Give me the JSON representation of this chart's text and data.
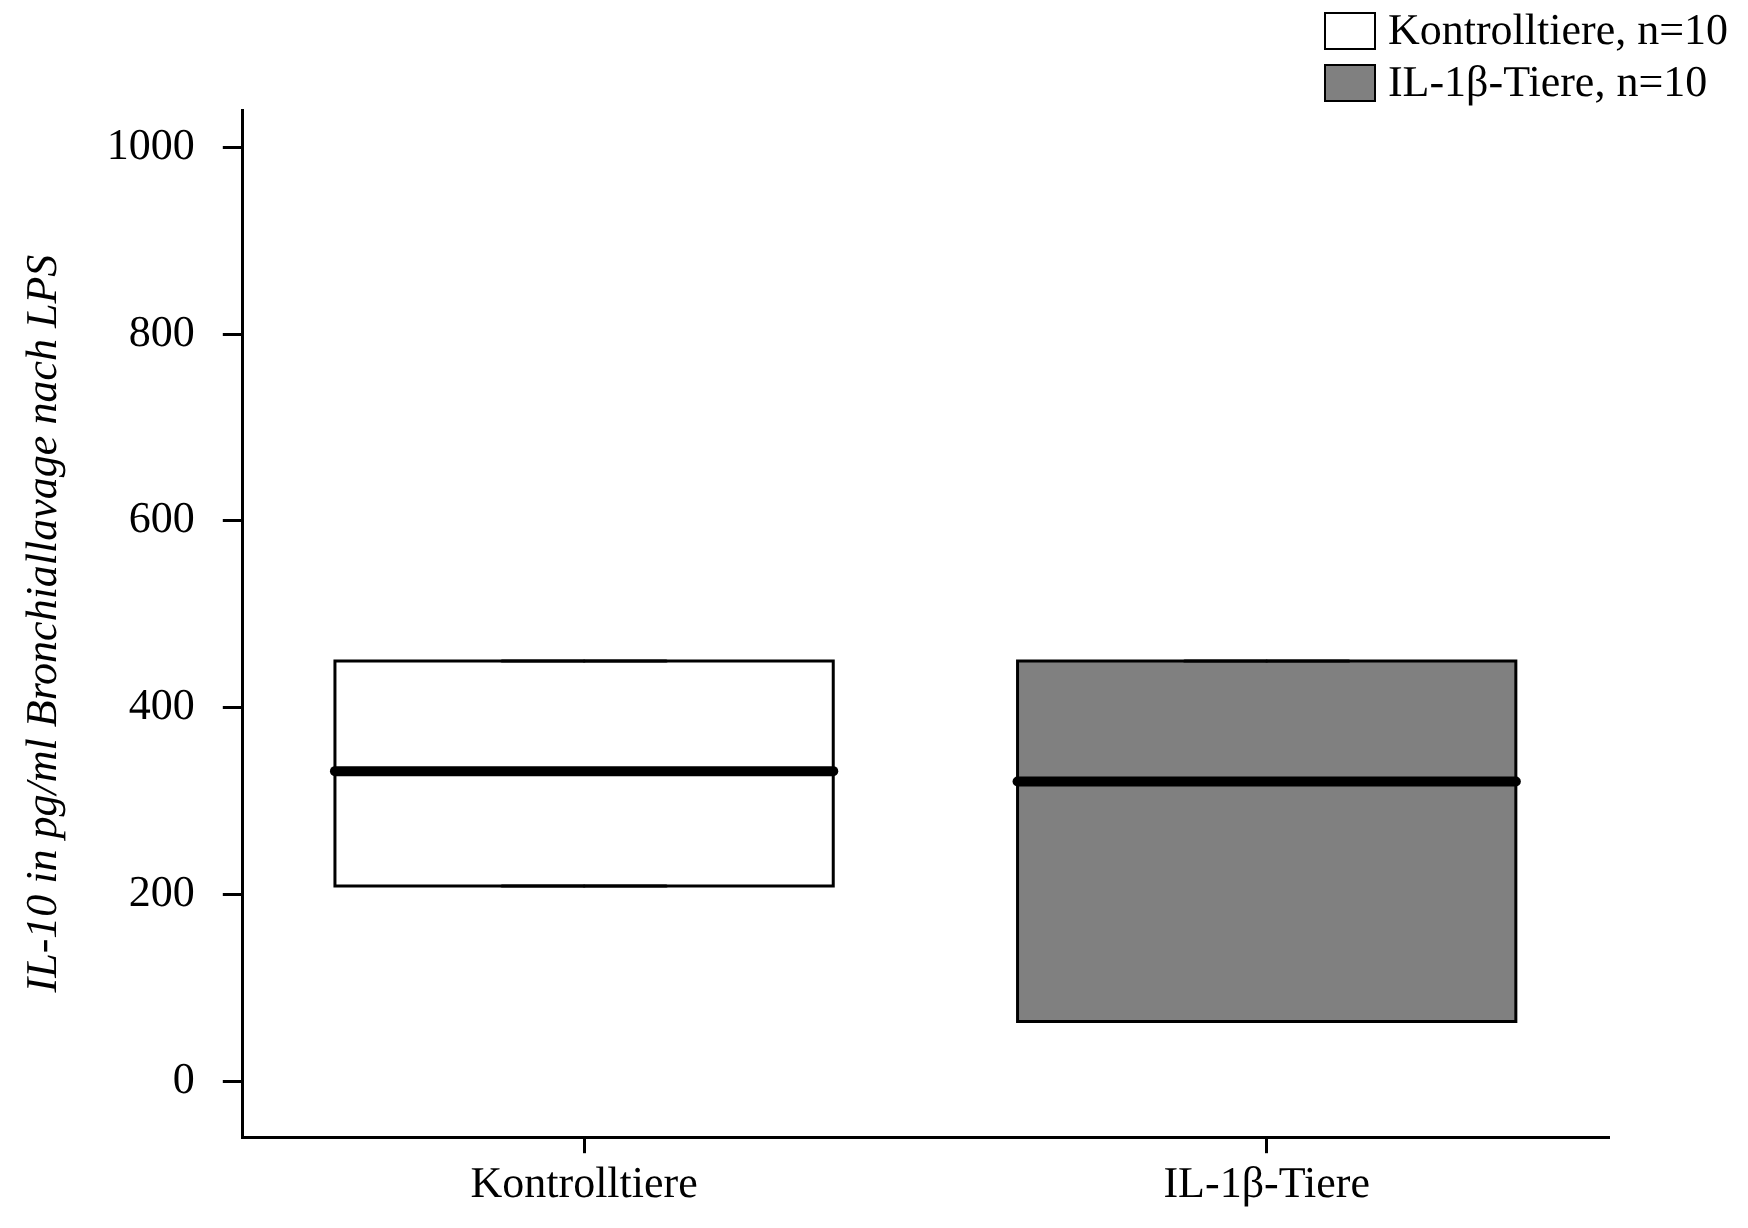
{
  "chart_data": {
    "type": "box",
    "ylabel": "IL-10 in pg/ml Bronchiallavage nach LPS",
    "categories": [
      "Kontrolltiere",
      "IL-1β-Tiere"
    ],
    "series": [
      {
        "name": "Kontrolltiere, n=10",
        "color": "#ffffff",
        "boxes": [
          {
            "low": 209,
            "q1": 209,
            "median": 332,
            "q3": 450,
            "high": 450
          },
          null
        ]
      },
      {
        "name": "IL-1β-Tiere, n=10",
        "color": "#808080",
        "boxes": [
          null,
          {
            "low": 64,
            "q1": 64,
            "median": 321,
            "q3": 450,
            "high": 450
          }
        ]
      }
    ],
    "ylim": [
      -60,
      1040
    ],
    "yticks": [
      0,
      200,
      400,
      600,
      800,
      1000
    ],
    "grid": false,
    "legend": "top right"
  }
}
